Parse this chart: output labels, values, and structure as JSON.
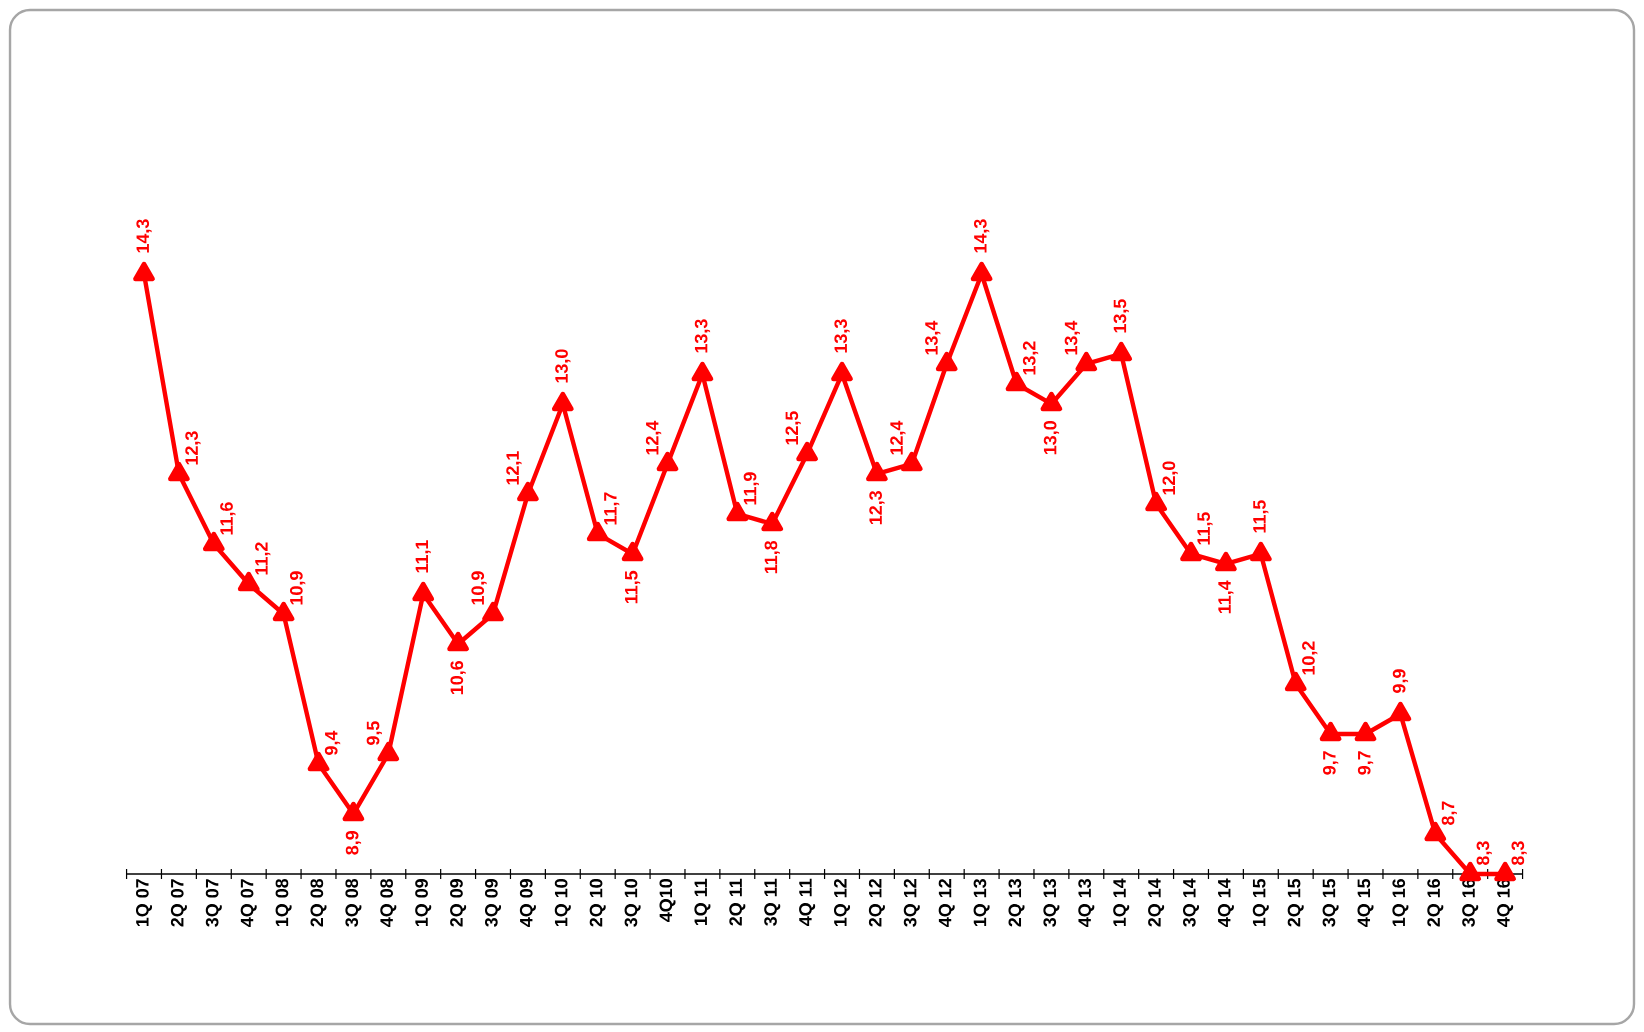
{
  "chart_data": {
    "type": "line",
    "categories": [
      "1Q 07",
      "2Q 07",
      "3Q 07",
      "4Q 07",
      "1Q 08",
      "2Q 08",
      "3Q 08",
      "4Q 08",
      "1Q 09",
      "2Q 09",
      "3Q 09",
      "4Q 09",
      "1Q 10",
      "2Q 10",
      "3Q 10",
      "4Q10",
      "1Q 11",
      "2Q 11",
      "3Q 11",
      "4Q 11",
      "1Q 12",
      "2Q 12",
      "3Q 12",
      "4Q 12",
      "1Q 13",
      "2Q 13",
      "3Q 13",
      "4Q 13",
      "1Q 14",
      "2Q 14",
      "3Q 14",
      "4Q 14",
      "1Q 15",
      "2Q 15",
      "3Q 15",
      "4Q 15",
      "1Q 16",
      "2Q 16",
      "3Q 16",
      "4Q 16"
    ],
    "values": [
      14.3,
      12.3,
      11.6,
      11.2,
      10.9,
      9.4,
      8.9,
      9.5,
      11.1,
      10.6,
      10.9,
      12.1,
      13.0,
      11.7,
      11.5,
      12.4,
      13.3,
      11.9,
      11.8,
      12.5,
      13.3,
      12.3,
      12.4,
      13.4,
      14.3,
      13.2,
      13.0,
      13.4,
      13.5,
      12.0,
      11.5,
      11.4,
      11.5,
      10.2,
      9.7,
      9.7,
      9.9,
      8.7,
      8.3,
      8.3
    ],
    "value_labels": [
      "14,3",
      "12,3",
      "11,6",
      "11,2",
      "10,9",
      "9,4",
      "8,9",
      "9,5",
      "11,1",
      "10,6",
      "10,9",
      "12,1",
      "13,0",
      "11,7",
      "11,5",
      "12,4",
      "13,3",
      "11,9",
      "11,8",
      "12,5",
      "13,3",
      "12,3",
      "12,4",
      "13,4",
      "14,3",
      "13,2",
      "13,0",
      "13,4",
      "13,5",
      "12,0",
      "11,5",
      "11,4",
      "11,5",
      "10,2",
      "9,7",
      "9,7",
      "9,9",
      "8,7",
      "8,3",
      "8,3"
    ],
    "color": "#ff0000",
    "marker": "triangle",
    "line_style": "solid"
  }
}
